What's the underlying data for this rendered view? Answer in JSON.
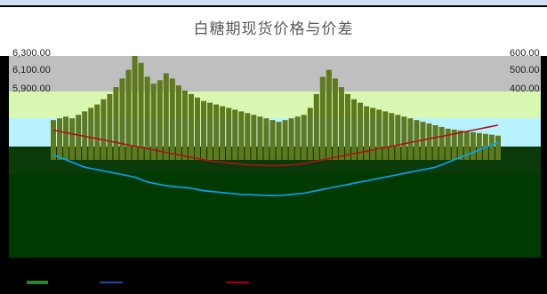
{
  "chart_data": {
    "type": "line",
    "title": "白糖期现货价格与价差",
    "y_left_ticks": [
      "6,300.00",
      "6,100.00",
      "5,900.00"
    ],
    "y_right_ticks": [
      "600.00",
      "500.00",
      "400.00"
    ],
    "x_labels": [],
    "legend": [
      "",
      "",
      ""
    ],
    "series": [
      {
        "name": "",
        "axis": "right",
        "type": "area",
        "color": "#5f7a1e",
        "values": [
          230,
          240,
          250,
          240,
          260,
          280,
          300,
          320,
          350,
          380,
          420,
          470,
          520,
          600,
          560,
          480,
          440,
          460,
          500,
          470,
          430,
          400,
          380,
          360,
          340,
          330,
          320,
          310,
          300,
          290,
          280,
          270,
          260,
          250,
          240,
          230,
          220,
          230,
          240,
          250,
          260,
          300,
          380,
          480,
          520,
          470,
          420,
          380,
          350,
          330,
          310,
          300,
          290,
          280,
          270,
          260,
          250,
          240,
          230,
          220,
          210,
          200,
          190,
          180,
          175,
          170,
          165,
          160,
          155,
          150,
          145,
          140
        ]
      },
      {
        "name": "",
        "axis": "left",
        "type": "line",
        "color": "#00a6ff",
        "values": [
          5500,
          5480,
          5460,
          5440,
          5420,
          5400,
          5390,
          5380,
          5370,
          5360,
          5350,
          5340,
          5330,
          5320,
          5300,
          5280,
          5270,
          5260,
          5250,
          5245,
          5240,
          5235,
          5230,
          5220,
          5210,
          5205,
          5200,
          5195,
          5190,
          5185,
          5180,
          5178,
          5176,
          5174,
          5172,
          5170,
          5172,
          5175,
          5180,
          5185,
          5190,
          5200,
          5210,
          5220,
          5230,
          5240,
          5250,
          5260,
          5270,
          5280,
          5290,
          5300,
          5310,
          5320,
          5330,
          5340,
          5350,
          5360,
          5370,
          5380,
          5390,
          5400,
          5420,
          5440,
          5460,
          5480,
          5500,
          5520,
          5540,
          5560,
          5580,
          5600
        ]
      },
      {
        "name": "",
        "axis": "left",
        "type": "line",
        "color": "#b0101a",
        "values": [
          5700,
          5690,
          5680,
          5670,
          5660,
          5650,
          5640,
          5630,
          5620,
          5610,
          5600,
          5590,
          5580,
          5570,
          5560,
          5550,
          5540,
          5530,
          5520,
          5510,
          5500,
          5490,
          5480,
          5470,
          5460,
          5450,
          5445,
          5440,
          5435,
          5430,
          5425,
          5420,
          5418,
          5416,
          5414,
          5412,
          5414,
          5416,
          5420,
          5425,
          5430,
          5440,
          5450,
          5460,
          5470,
          5480,
          5490,
          5500,
          5510,
          5520,
          5530,
          5540,
          5550,
          5560,
          5570,
          5580,
          5590,
          5600,
          5610,
          5620,
          5630,
          5640,
          5650,
          5660,
          5670,
          5680,
          5690,
          5700,
          5710,
          5720,
          5730,
          5740
        ]
      }
    ]
  }
}
